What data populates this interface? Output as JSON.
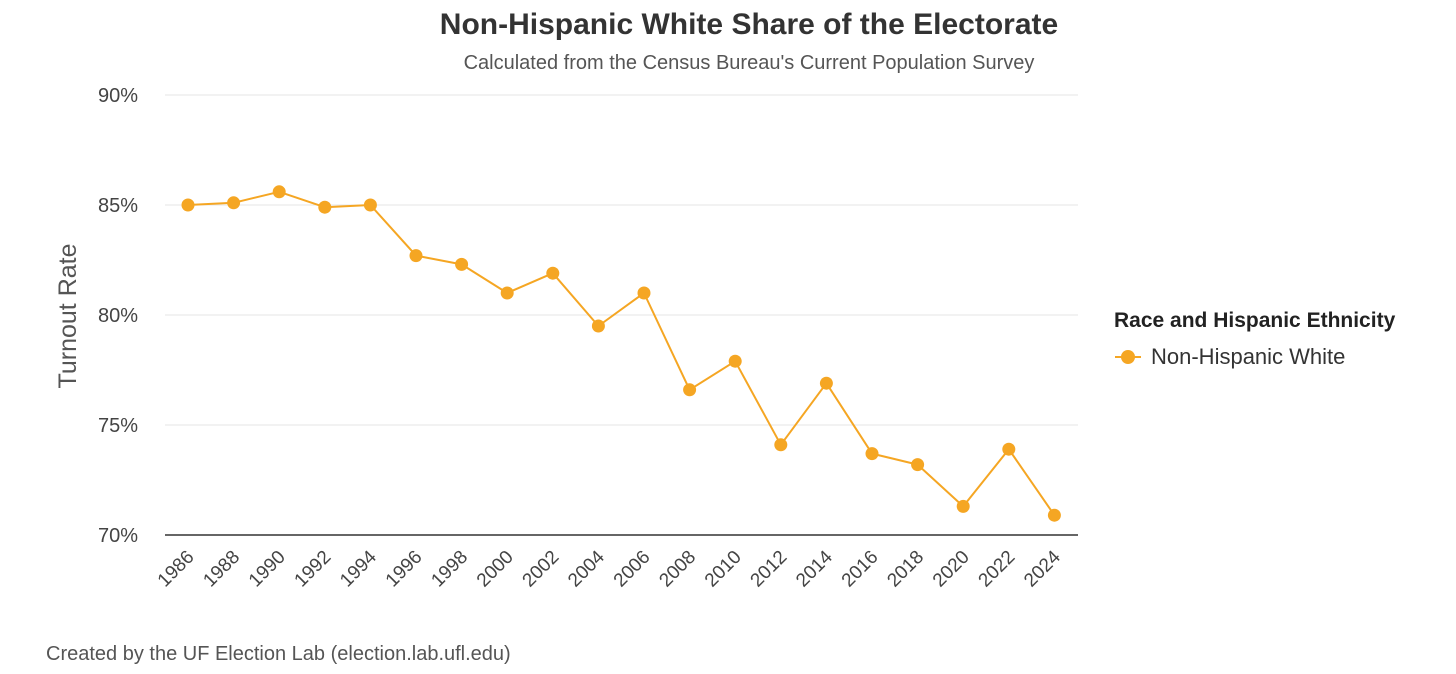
{
  "chart_data": {
    "type": "line",
    "title": "Non-Hispanic White Share of the Electorate",
    "subtitle": "Calculated from the Census Bureau's Current Population Survey",
    "xlabel": "",
    "ylabel": "Turnout Rate",
    "ylim": [
      70,
      90
    ],
    "y_ticks": [
      "70%",
      "75%",
      "80%",
      "85%",
      "90%"
    ],
    "y_tick_values": [
      70,
      75,
      80,
      85,
      90
    ],
    "categories": [
      "1986",
      "1988",
      "1990",
      "1992",
      "1994",
      "1996",
      "1998",
      "2000",
      "2002",
      "2004",
      "2006",
      "2008",
      "2010",
      "2012",
      "2014",
      "2016",
      "2018",
      "2020",
      "2022",
      "2024"
    ],
    "series": [
      {
        "name": "Non-Hispanic White",
        "color": "#f5a623",
        "values": [
          85.0,
          85.1,
          85.6,
          84.9,
          85.0,
          82.7,
          82.3,
          81.0,
          81.9,
          79.5,
          81.0,
          76.6,
          77.9,
          74.1,
          76.9,
          73.7,
          73.2,
          71.3,
          73.9,
          70.9
        ]
      }
    ],
    "grid": true,
    "legend": {
      "title": "Race and Hispanic Ethnicity",
      "position": "right"
    },
    "credit": "Created by the UF Election Lab (election.lab.ufl.edu)"
  }
}
